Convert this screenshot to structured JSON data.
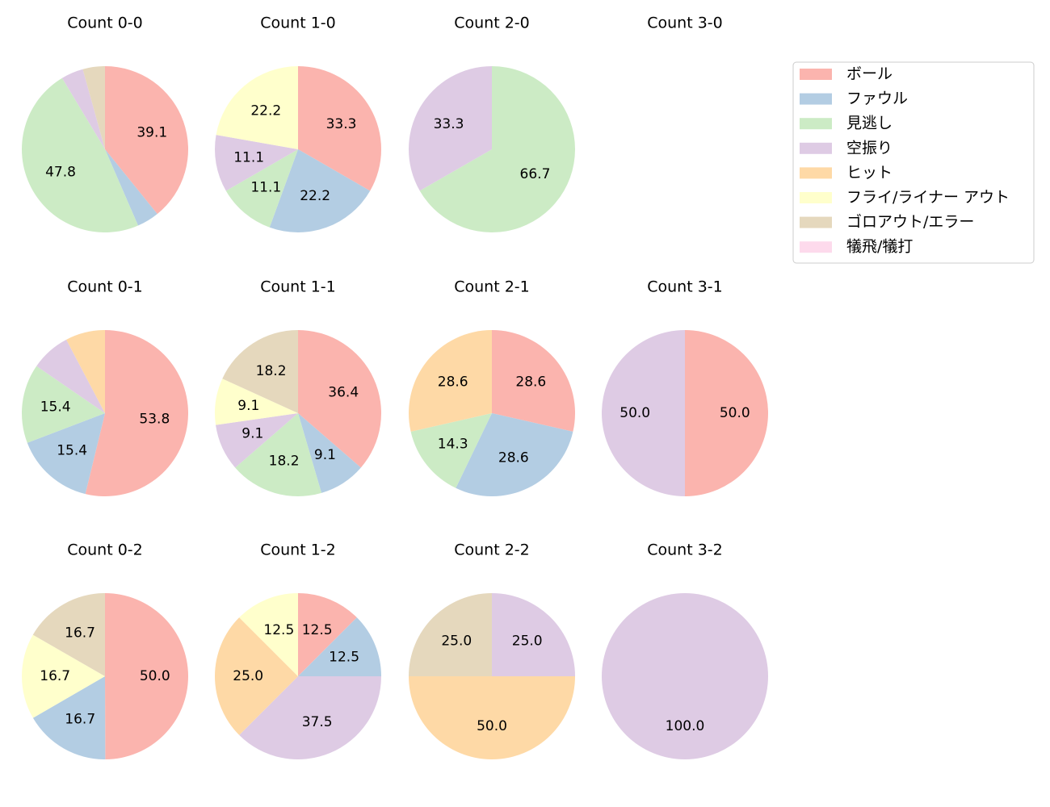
{
  "legend": {
    "position": "upper right",
    "entries": [
      {
        "name": "ボール",
        "color": "#fbb4ae"
      },
      {
        "name": "ファウル",
        "color": "#b3cde3"
      },
      {
        "name": "見逃し",
        "color": "#ccebc5"
      },
      {
        "name": "空振り",
        "color": "#decbe4"
      },
      {
        "name": "ヒット",
        "color": "#fed9a6"
      },
      {
        "name": "フライ/ライナー アウト",
        "color": "#ffffcc"
      },
      {
        "name": "ゴロアウト/エラー",
        "color": "#e5d8bd"
      },
      {
        "name": "犠飛/犠打",
        "color": "#fddaec"
      }
    ]
  },
  "chart_data": [
    {
      "type": "pie",
      "title": "Count 0-0",
      "values": [
        39.1,
        4.3,
        47.8,
        4.3,
        0,
        0,
        4.3,
        0
      ],
      "value_labels": [
        "39.1",
        null,
        "47.8",
        null,
        null,
        null,
        null,
        null
      ]
    },
    {
      "type": "pie",
      "title": "Count 1-0",
      "values": [
        33.3,
        22.2,
        11.1,
        11.1,
        0,
        22.2,
        0,
        0
      ],
      "value_labels": [
        "33.3",
        "22.2",
        "11.1",
        "11.1",
        null,
        "22.2",
        null,
        null
      ]
    },
    {
      "type": "pie",
      "title": "Count 2-0",
      "values": [
        0,
        0,
        66.7,
        33.3,
        0,
        0,
        0,
        0
      ],
      "value_labels": [
        null,
        null,
        "66.7",
        "33.3",
        null,
        null,
        null,
        null
      ]
    },
    {
      "type": "pie",
      "title": "Count 3-0",
      "values": [],
      "value_labels": []
    },
    {
      "type": "pie",
      "title": "Count 0-1",
      "values": [
        53.8,
        15.4,
        15.4,
        7.7,
        7.7,
        0,
        0,
        0
      ],
      "value_labels": [
        "53.8",
        "15.4",
        "15.4",
        null,
        null,
        null,
        null,
        null
      ]
    },
    {
      "type": "pie",
      "title": "Count 1-1",
      "values": [
        36.4,
        9.1,
        18.2,
        9.1,
        0,
        9.1,
        18.2,
        0
      ],
      "value_labels": [
        "36.4",
        "9.1",
        "18.2",
        "9.1",
        null,
        "9.1",
        "18.2",
        null
      ]
    },
    {
      "type": "pie",
      "title": "Count 2-1",
      "values": [
        28.6,
        28.6,
        14.3,
        0,
        28.6,
        0,
        0,
        0
      ],
      "value_labels": [
        "28.6",
        "28.6",
        "14.3",
        null,
        "28.6",
        null,
        null,
        null
      ]
    },
    {
      "type": "pie",
      "title": "Count 3-1",
      "values": [
        50,
        0,
        0,
        50,
        0,
        0,
        0,
        0
      ],
      "value_labels": [
        "50.0",
        null,
        null,
        "50.0",
        null,
        null,
        null,
        null
      ]
    },
    {
      "type": "pie",
      "title": "Count 0-2",
      "values": [
        50,
        16.7,
        0,
        0,
        0,
        16.7,
        16.7,
        0
      ],
      "value_labels": [
        "50.0",
        "16.7",
        null,
        null,
        null,
        "16.7",
        "16.7",
        null
      ]
    },
    {
      "type": "pie",
      "title": "Count 1-2",
      "values": [
        12.5,
        12.5,
        0,
        37.5,
        25,
        12.5,
        0,
        0
      ],
      "value_labels": [
        "12.5",
        "12.5",
        null,
        "37.5",
        "25.0",
        "12.5",
        null,
        null
      ]
    },
    {
      "type": "pie",
      "title": "Count 2-2",
      "values": [
        0,
        0,
        0,
        25,
        50,
        0,
        25,
        0
      ],
      "value_labels": [
        null,
        null,
        null,
        "25.0",
        "50.0",
        null,
        "25.0",
        null
      ]
    },
    {
      "type": "pie",
      "title": "Count 3-2",
      "values": [
        0,
        0,
        0,
        100,
        0,
        0,
        0,
        0
      ],
      "value_labels": [
        null,
        null,
        null,
        "100.0",
        null,
        null,
        null,
        null
      ]
    }
  ]
}
